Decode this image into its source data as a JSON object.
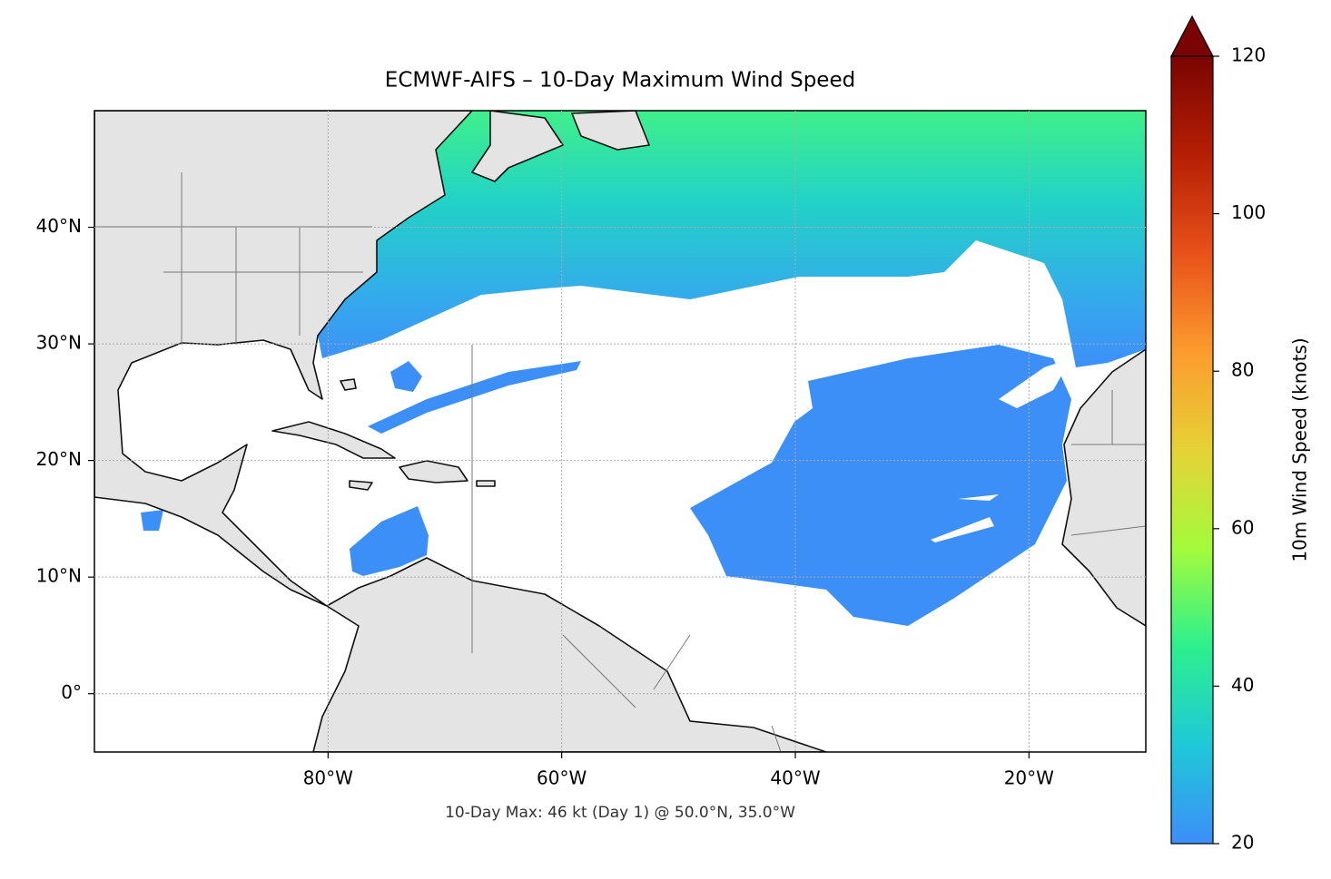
{
  "chart_data": {
    "type": "map",
    "title": "ECMWF-AIFS – 10-Day Maximum Wind Speed",
    "subtitle": "10-Day Max: 46 kt (Day 1) @ 50.0°N, 35.0°W",
    "xlim": [
      -100,
      -10
    ],
    "ylim": [
      -5,
      50
    ],
    "xticks": [
      {
        "value": -80,
        "label": "80°W"
      },
      {
        "value": -60,
        "label": "60°W"
      },
      {
        "value": -40,
        "label": "40°W"
      },
      {
        "value": -20,
        "label": "20°W"
      }
    ],
    "yticks": [
      {
        "value": 0,
        "label": "0°"
      },
      {
        "value": 10,
        "label": "10°N"
      },
      {
        "value": 20,
        "label": "20°N"
      },
      {
        "value": 30,
        "label": "30°N"
      },
      {
        "value": 40,
        "label": "40°N"
      }
    ],
    "grid": true,
    "colorbar": {
      "label": "10m Wind Speed (knots)",
      "lim": [
        20,
        120
      ],
      "ticks": [
        20,
        40,
        60,
        80,
        100,
        120
      ],
      "colormap": [
        "#3d8ef8",
        "#1fc8d8",
        "#2cf08e",
        "#a4fb3b",
        "#e6d236",
        "#fc9b2f",
        "#e8511a",
        "#b51e04",
        "#7a0403"
      ],
      "extend": "max"
    }
  }
}
